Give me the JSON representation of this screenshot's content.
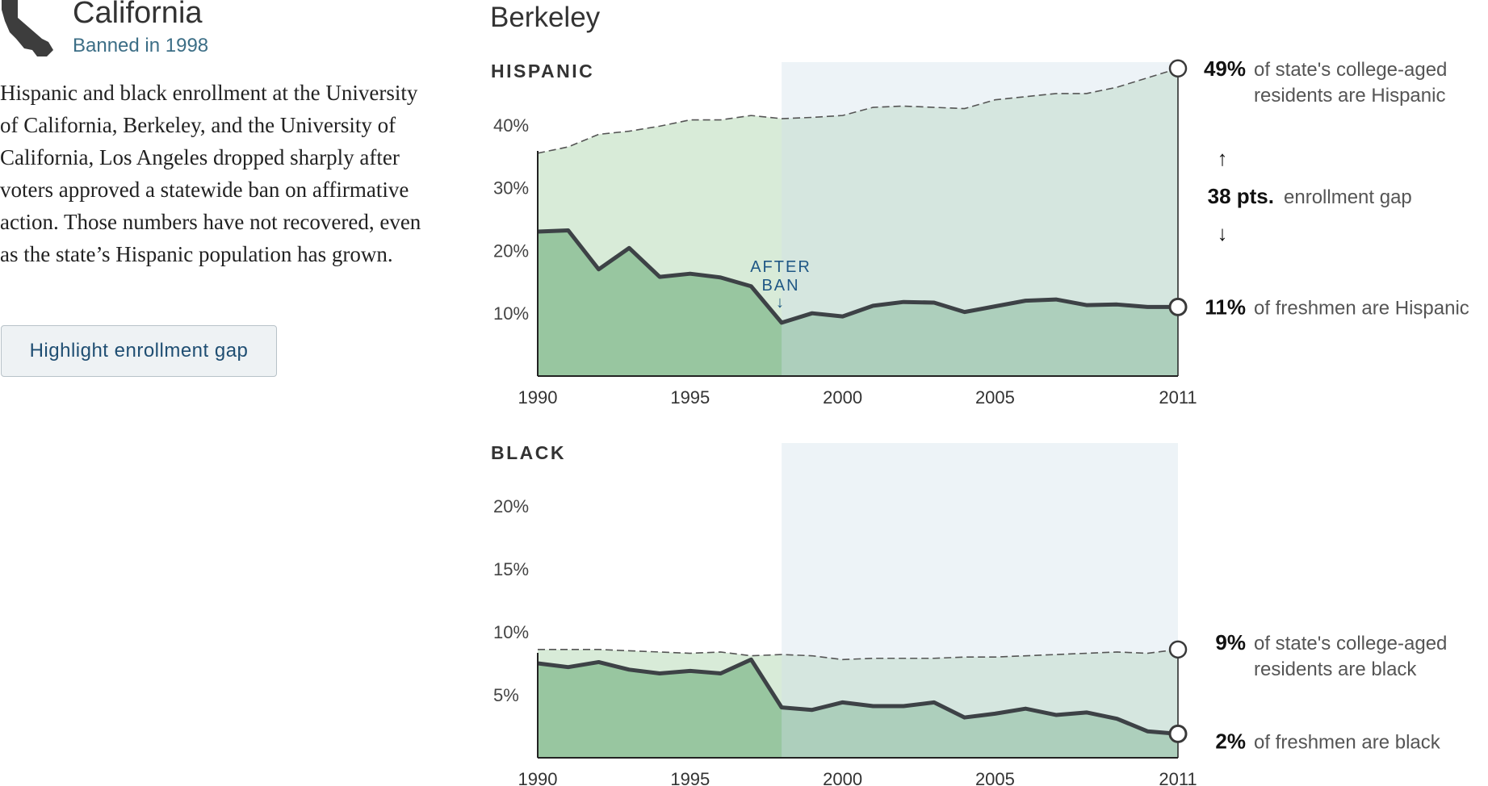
{
  "header": {
    "state_name": "California",
    "ban_text": "Banned in 1998",
    "description": "Hispanic and black enrollment at the University of California, Berkeley, and the University of California, Los Angeles dropped sharply after voters approved a statewide ban on affirmative action. Those numbers have not recovered, even as the state’s Hispanic population has grown.",
    "button_label": "Highlight enrollment gap",
    "school_name": "Berkeley"
  },
  "colors": {
    "population_fill": "#d8ebd8",
    "enrollment_fill": "#98c6a0",
    "post_ban_shade": "#e9f1f4",
    "line": "#3d4246",
    "ban_label": "#1f5785"
  },
  "after_ban_label": [
    "AFTER",
    "BAN"
  ],
  "after_ban_arrow": "↓",
  "gap_arrows": {
    "up": "↑",
    "down": "↓"
  },
  "chart_data": [
    {
      "type": "area",
      "title": "HISPANIC",
      "x": [
        1990,
        1991,
        1992,
        1993,
        1994,
        1995,
        1996,
        1997,
        1998,
        1999,
        2000,
        2001,
        2002,
        2003,
        2004,
        2005,
        2006,
        2007,
        2008,
        2009,
        2010,
        2011
      ],
      "xticks": [
        "1990",
        "1995",
        "2000",
        "2005",
        "2011"
      ],
      "ylim": [
        0,
        50
      ],
      "yticks": [
        "10%",
        "20%",
        "30%",
        "40%"
      ],
      "ban_year": 1998,
      "series": [
        {
          "style": "dashed",
          "values": [
            35.5,
            36.5,
            38.5,
            39,
            39.8,
            40.8,
            40.8,
            41.5,
            41,
            41.2,
            41.5,
            42.8,
            43,
            42.8,
            42.6,
            44,
            44.5,
            45,
            45,
            46,
            47.5,
            49
          ]
        },
        {
          "style": "solid",
          "values": [
            23,
            23.2,
            17,
            20.4,
            15.8,
            16.3,
            15.7,
            14.3,
            8.5,
            10,
            9.5,
            11.2,
            11.8,
            11.7,
            10.2,
            11.1,
            12,
            12.2,
            11.3,
            11.4,
            11,
            11
          ]
        }
      ],
      "annotations": {
        "top": {
          "value": "49%",
          "text1": "of state's college-aged",
          "text2": "residents are Hispanic"
        },
        "gap": {
          "value": "38 pts.",
          "text": "enrollment gap"
        },
        "bottom": {
          "value": "11%",
          "text": "of freshmen are Hispanic"
        }
      }
    },
    {
      "type": "area",
      "title": "BLACK",
      "x": [
        1990,
        1991,
        1992,
        1993,
        1994,
        1995,
        1996,
        1997,
        1998,
        1999,
        2000,
        2001,
        2002,
        2003,
        2004,
        2005,
        2006,
        2007,
        2008,
        2009,
        2010,
        2011
      ],
      "xticks": [
        "1990",
        "1995",
        "2000",
        "2005",
        "2011"
      ],
      "ylim": [
        0,
        25
      ],
      "yticks": [
        "5%",
        "10%",
        "15%",
        "20%"
      ],
      "ban_year": 1998,
      "series": [
        {
          "style": "dashed",
          "values": [
            8.6,
            8.6,
            8.6,
            8.5,
            8.4,
            8.3,
            8.4,
            8.1,
            8.2,
            8.1,
            7.8,
            7.9,
            7.9,
            7.9,
            8,
            8,
            8.1,
            8.2,
            8.3,
            8.4,
            8.3,
            8.6
          ]
        },
        {
          "style": "solid",
          "values": [
            7.5,
            7.2,
            7.6,
            7,
            6.7,
            6.9,
            6.7,
            7.8,
            4,
            3.8,
            4.4,
            4.1,
            4.1,
            4.4,
            3.2,
            3.5,
            3.9,
            3.4,
            3.6,
            3.1,
            2.1,
            1.9
          ]
        }
      ],
      "annotations": {
        "top": {
          "value": "9%",
          "text1": "of state's college-aged",
          "text2": "residents are black"
        },
        "bottom": {
          "value": "2%",
          "text": "of freshmen are black"
        }
      }
    }
  ]
}
